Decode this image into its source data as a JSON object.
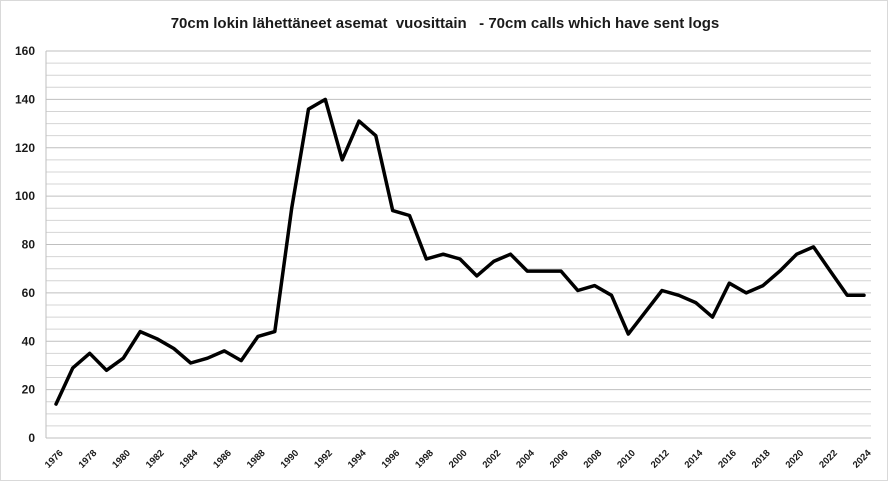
{
  "chart_data": {
    "type": "line",
    "title": "70cm lokin lähettäneet asemat  vuosittain   - 70cm calls which have sent logs",
    "xlabel": "",
    "ylabel": "",
    "ylim": [
      0,
      160
    ],
    "y_ticks": [
      0,
      20,
      40,
      60,
      80,
      100,
      120,
      140,
      160
    ],
    "minor_grid_step": 5,
    "grid": true,
    "x_tick_labels": [
      "1976",
      "1978",
      "1980",
      "1982",
      "1984",
      "1986",
      "1988",
      "1990",
      "1992",
      "1994",
      "1996",
      "1998",
      "2000",
      "2002",
      "2004",
      "2006",
      "2008",
      "2010",
      "2012",
      "2014",
      "2016",
      "2018",
      "2020",
      "2022",
      "2024"
    ],
    "x": [
      1976,
      1977,
      1978,
      1979,
      1980,
      1981,
      1982,
      1983,
      1984,
      1985,
      1986,
      1987,
      1988,
      1989,
      1990,
      1991,
      1992,
      1993,
      1994,
      1995,
      1996,
      1997,
      1998,
      1999,
      2000,
      2001,
      2002,
      2003,
      2004,
      2005,
      2006,
      2007,
      2008,
      2009,
      2010,
      2011,
      2012,
      2013,
      2014,
      2015,
      2016,
      2017,
      2018,
      2019,
      2020,
      2021,
      2022,
      2023,
      2024
    ],
    "series": [
      {
        "name": "",
        "color": "#000000",
        "values": [
          14,
          29,
          35,
          28,
          33,
          44,
          41,
          37,
          31,
          33,
          36,
          32,
          42,
          44,
          95,
          136,
          140,
          115,
          131,
          125,
          94,
          92,
          74,
          76,
          74,
          67,
          73,
          76,
          69,
          69,
          69,
          61,
          63,
          59,
          43,
          52,
          61,
          59,
          56,
          50,
          64,
          60,
          63,
          69,
          76,
          79,
          69,
          59,
          59
        ]
      }
    ]
  }
}
